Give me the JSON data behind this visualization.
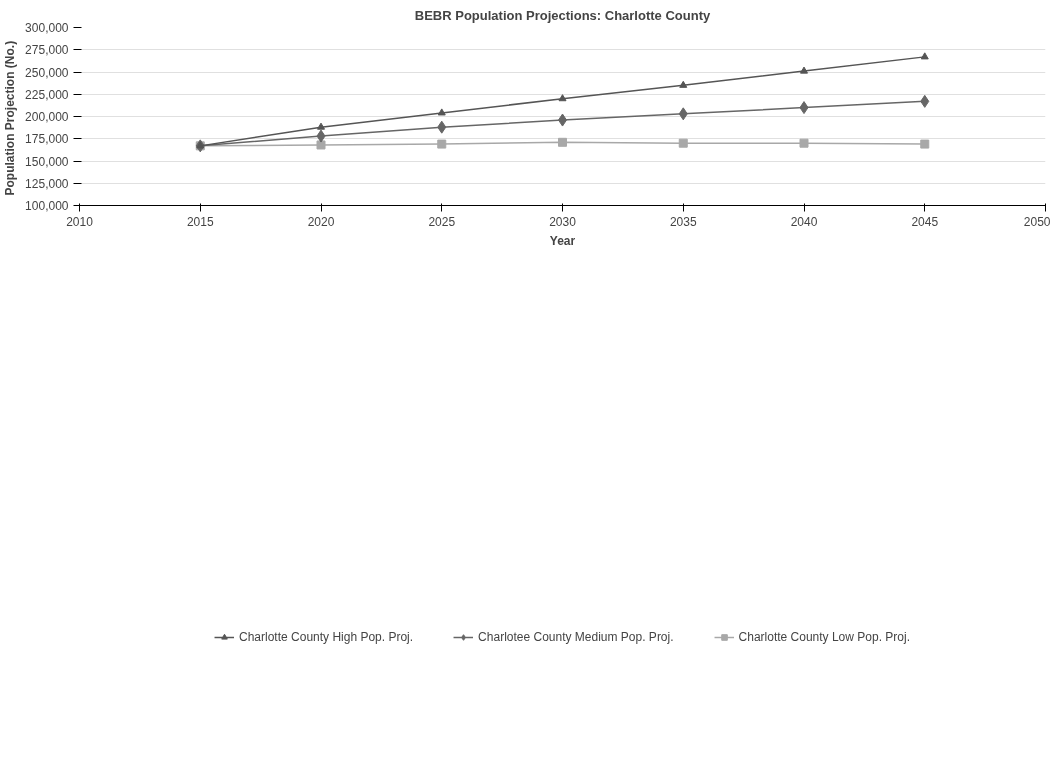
{
  "chart_data": {
    "type": "line",
    "title": "BEBR Population Projections: Charlotte County",
    "xlabel": "Year",
    "ylabel": "Population Projection  (No.)",
    "x": [
      2015,
      2020,
      2025,
      2030,
      2035,
      2040,
      2045
    ],
    "series": [
      {
        "name": "Charlotte County High Pop. Proj.",
        "color": "#555555",
        "marker": "triangle",
        "values": [
          167000,
          188000,
          204000,
          220000,
          235000,
          251000,
          267000
        ]
      },
      {
        "name": "Charlotee County Medium Pop. Proj.",
        "color": "#666666",
        "marker": "diamond",
        "values": [
          167000,
          178000,
          188000,
          196000,
          203000,
          210000,
          217000
        ]
      },
      {
        "name": "Charlotte County Low Pop. Proj.",
        "color": "#a8a8a8",
        "marker": "square",
        "values": [
          167000,
          168000,
          169000,
          171000,
          170000,
          170000,
          169000
        ]
      }
    ],
    "xlim": [
      2010,
      2050
    ],
    "xticks": [
      2010,
      2015,
      2020,
      2025,
      2030,
      2035,
      2040,
      2045,
      2050
    ],
    "ylim": [
      100000,
      300000
    ],
    "yticks": [
      {
        "value": 100000,
        "label": "100,000"
      },
      {
        "value": 125000,
        "label": "125,000"
      },
      {
        "value": 150000,
        "label": "150,000"
      },
      {
        "value": 175000,
        "label": "175,000"
      },
      {
        "value": 200000,
        "label": "200,000"
      },
      {
        "value": 225000,
        "label": "225,000"
      },
      {
        "value": 250000,
        "label": "250,000"
      },
      {
        "value": 275000,
        "label": "275,000"
      },
      {
        "value": 300000,
        "label": "300,000"
      }
    ],
    "grid": "y",
    "legend": "bottom",
    "line_style": "solid"
  }
}
